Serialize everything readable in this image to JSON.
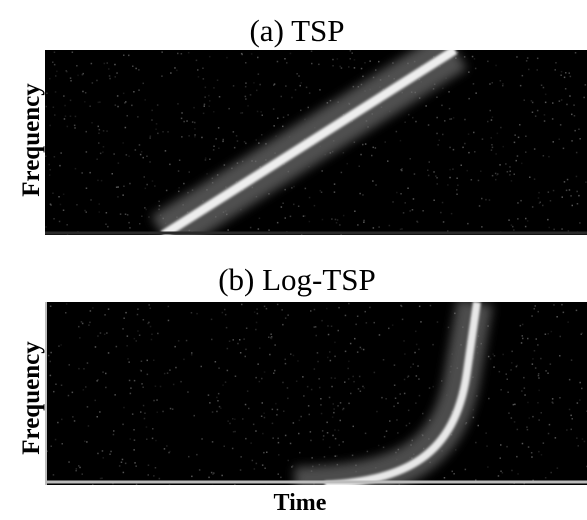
{
  "chart_data": [
    {
      "type": "heatmap",
      "title": "(a) TSP",
      "ylabel": "Frequency",
      "xlabel": "",
      "sweep": "linear",
      "colormap": "grayscale",
      "x_ticks": false,
      "y_ticks": false,
      "grid": false
    },
    {
      "type": "heatmap",
      "title": "(b) Log-TSP",
      "ylabel": "Frequency",
      "xlabel": "Time",
      "sweep": "logarithmic",
      "colormap": "grayscale",
      "x_ticks": false,
      "y_ticks": false,
      "grid": false
    }
  ]
}
